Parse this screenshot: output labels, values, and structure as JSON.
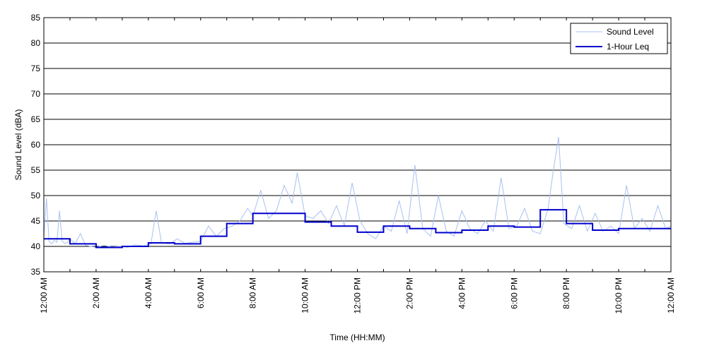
{
  "chart_data": {
    "type": "line",
    "title": "",
    "xlabel": "Time (HH:MM)",
    "ylabel": "Sound Level (dBA)",
    "ylim": [
      35,
      85
    ],
    "yticks": [
      35,
      40,
      45,
      50,
      55,
      60,
      65,
      70,
      75,
      80,
      85
    ],
    "xlim_hours": [
      0,
      24
    ],
    "xticks": [
      {
        "hour": 0,
        "label": "12:00 AM"
      },
      {
        "hour": 2,
        "label": "2:00 AM"
      },
      {
        "hour": 4,
        "label": "4:00 AM"
      },
      {
        "hour": 6,
        "label": "6:00 AM"
      },
      {
        "hour": 8,
        "label": "8:00 AM"
      },
      {
        "hour": 10,
        "label": "10:00 AM"
      },
      {
        "hour": 12,
        "label": "12:00 PM"
      },
      {
        "hour": 14,
        "label": "2:00 PM"
      },
      {
        "hour": 16,
        "label": "4:00 PM"
      },
      {
        "hour": 18,
        "label": "6:00 PM"
      },
      {
        "hour": 20,
        "label": "8:00 PM"
      },
      {
        "hour": 22,
        "label": "10:00 PM"
      },
      {
        "hour": 24,
        "label": "12:00 AM"
      }
    ],
    "grid": "horizontal",
    "legend": "top-right",
    "series": [
      {
        "name": "Sound Level",
        "color": "#a8c0f0",
        "style": "thin",
        "x_hours": [
          0,
          0.1,
          0.2,
          0.3,
          0.4,
          0.5,
          0.6,
          0.7,
          0.8,
          0.9,
          1.0,
          1.2,
          1.4,
          1.6,
          1.8,
          2.0,
          2.3,
          2.6,
          2.9,
          3.2,
          3.5,
          3.8,
          4.1,
          4.3,
          4.5,
          4.8,
          5.1,
          5.4,
          5.7,
          6.0,
          6.3,
          6.6,
          6.9,
          7.2,
          7.5,
          7.8,
          8.0,
          8.3,
          8.6,
          8.9,
          9.2,
          9.5,
          9.7,
          10.0,
          10.3,
          10.6,
          10.9,
          11.2,
          11.5,
          11.8,
          12.1,
          12.4,
          12.7,
          13.0,
          13.3,
          13.6,
          13.9,
          14.2,
          14.5,
          14.8,
          15.1,
          15.4,
          15.7,
          16.0,
          16.3,
          16.6,
          16.9,
          17.2,
          17.5,
          17.8,
          18.1,
          18.4,
          18.7,
          19.0,
          19.3,
          19.5,
          19.7,
          19.9,
          20.2,
          20.5,
          20.8,
          21.1,
          21.4,
          21.7,
          22.0,
          22.3,
          22.6,
          22.9,
          23.2,
          23.5,
          23.8,
          24.0
        ],
        "values": [
          41.5,
          49.5,
          41.0,
          40.5,
          41.2,
          40.8,
          47.0,
          41.0,
          40.6,
          40.8,
          41.5,
          40.5,
          42.5,
          40.2,
          40.0,
          39.8,
          40.2,
          39.9,
          40.0,
          39.8,
          40.3,
          40.1,
          40.5,
          47.0,
          40.8,
          40.4,
          41.5,
          40.6,
          40.8,
          41.0,
          44.0,
          42.0,
          43.5,
          44.0,
          45.0,
          47.5,
          46.0,
          51.0,
          45.5,
          47.0,
          52.0,
          48.5,
          54.5,
          46.0,
          45.5,
          47.0,
          44.5,
          48.0,
          44.0,
          52.5,
          45.0,
          42.5,
          41.5,
          44.0,
          43.0,
          49.0,
          42.5,
          56.0,
          43.5,
          42.0,
          50.0,
          43.0,
          42.0,
          47.0,
          43.5,
          42.5,
          45.0,
          43.0,
          53.5,
          43.5,
          44.0,
          47.5,
          43.0,
          42.5,
          47.5,
          55.0,
          61.5,
          44.5,
          43.5,
          48.0,
          43.0,
          46.5,
          43.0,
          44.0,
          42.5,
          52.0,
          43.5,
          45.5,
          43.0,
          48.0,
          43.5,
          44.0
        ]
      },
      {
        "name": "1-Hour Leq",
        "color": "#0000cc",
        "style": "step",
        "hour_starts": [
          0,
          1,
          2,
          3,
          4,
          5,
          6,
          7,
          8,
          9,
          10,
          11,
          12,
          13,
          14,
          15,
          16,
          17,
          18,
          19,
          20,
          21,
          22,
          23
        ],
        "values": [
          41.5,
          40.5,
          39.8,
          40.0,
          40.7,
          40.5,
          42.0,
          44.5,
          46.5,
          46.5,
          44.8,
          44.0,
          42.8,
          44.0,
          43.5,
          42.7,
          43.2,
          44.0,
          43.8,
          47.2,
          44.5,
          43.2,
          43.5,
          43.5
        ]
      }
    ]
  }
}
